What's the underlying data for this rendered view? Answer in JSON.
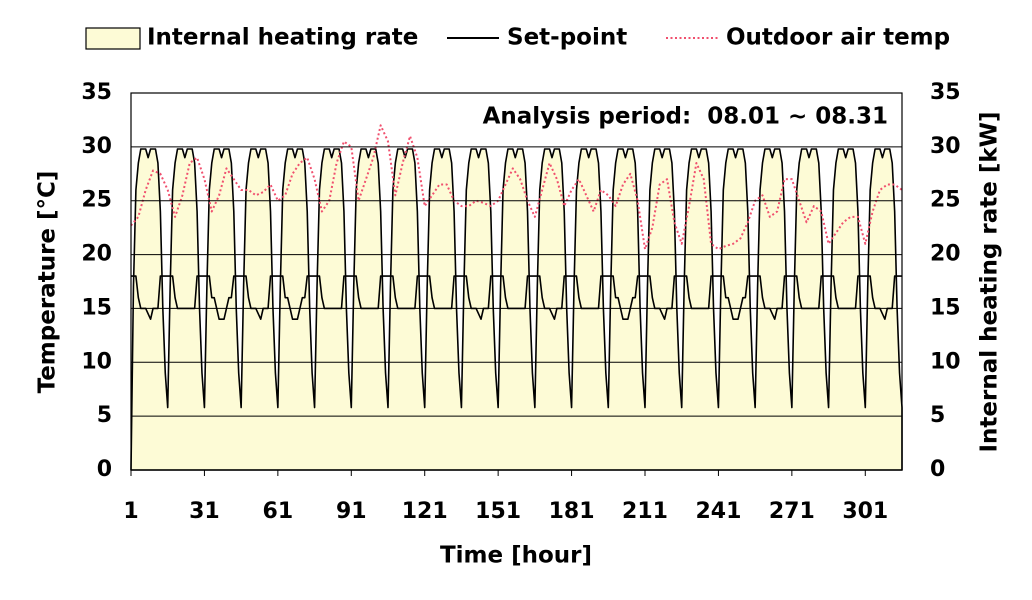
{
  "chart_data": {
    "type": "line",
    "annotation": "Analysis period:  08.01 ~ 08.31",
    "x_label": "Time [hour]",
    "y_label": "Temperature [°C]",
    "y2_label": "Internal heating rate [kW]",
    "xlim": [
      1,
      316
    ],
    "xticks": [
      1,
      31,
      61,
      91,
      121,
      151,
      181,
      211,
      241,
      271,
      301
    ],
    "ylim": [
      0,
      35
    ],
    "yticks": [
      0,
      5,
      10,
      15,
      20,
      25,
      30,
      35
    ],
    "y2lim": [
      0,
      35
    ],
    "y2ticks": [
      0,
      5,
      10,
      15,
      20,
      25,
      30,
      35
    ],
    "grid": true,
    "x": [
      1,
      2,
      3,
      4,
      5,
      6,
      7,
      8,
      9,
      10,
      11,
      12,
      13,
      14,
      15,
      16,
      17,
      18,
      19,
      20,
      21,
      22,
      23,
      24,
      25,
      26,
      27,
      28,
      29,
      30,
      31,
      32,
      33,
      34,
      35,
      36,
      37,
      38,
      39,
      40,
      41,
      42,
      43,
      44,
      45,
      46,
      47,
      48,
      49,
      50,
      51,
      52,
      53,
      54,
      55,
      56,
      57,
      58,
      59,
      60,
      61,
      62,
      63,
      64,
      65,
      66,
      67,
      68,
      69,
      70,
      71,
      72,
      73,
      74,
      75,
      76,
      77,
      78,
      79,
      80,
      81,
      82,
      83,
      84,
      85,
      86,
      87,
      88,
      89,
      90,
      91,
      92,
      93,
      94,
      95,
      96,
      97,
      98,
      99,
      100,
      101,
      102,
      103,
      104,
      105,
      106,
      107,
      108,
      109,
      110,
      111,
      112,
      113,
      114,
      115,
      116,
      117,
      118,
      119,
      120,
      121,
      122,
      123,
      124,
      125,
      126,
      127,
      128,
      129,
      130,
      131,
      132,
      133,
      134,
      135,
      136,
      137,
      138,
      139,
      140,
      141,
      142,
      143,
      144,
      145,
      146,
      147,
      148,
      149,
      150,
      151,
      152,
      153,
      154,
      155,
      156,
      157,
      158,
      159,
      160,
      161,
      162,
      163,
      164,
      165,
      166,
      167,
      168,
      169,
      170,
      171,
      172,
      173,
      174,
      175,
      176,
      177,
      178,
      179,
      180,
      181,
      182,
      183,
      184,
      185,
      186,
      187,
      188,
      189,
      190,
      191,
      192,
      193,
      194,
      195,
      196,
      197,
      198,
      199,
      200,
      201,
      202,
      203,
      204,
      205,
      206,
      207,
      208,
      209,
      210,
      211,
      212,
      213,
      214,
      215,
      216,
      217,
      218,
      219,
      220,
      221,
      222,
      223,
      224,
      225,
      226,
      227,
      228,
      229,
      230,
      231,
      232,
      233,
      234,
      235,
      236,
      237,
      238,
      239,
      240,
      241,
      242,
      243,
      244,
      245,
      246,
      247,
      248,
      249,
      250,
      251,
      252,
      253,
      254,
      255,
      256,
      257,
      258,
      259,
      260,
      261,
      262,
      263,
      264,
      265,
      266,
      267,
      268,
      269,
      270,
      271,
      272,
      273,
      274,
      275,
      276,
      277,
      278,
      279,
      280,
      281,
      282,
      283,
      284,
      285,
      286,
      287,
      288,
      289,
      290,
      291,
      292,
      293,
      294,
      295,
      296,
      297,
      298,
      299,
      300,
      301,
      302,
      303,
      304,
      305,
      306,
      307,
      308,
      309,
      310,
      311,
      312,
      313,
      314,
      315,
      316
    ],
    "series": [
      {
        "name": "Internal heating rate",
        "axis": "y2",
        "style": "area",
        "color": "#000000",
        "fill": "#fdfbd6",
        "values": [
          0,
          17,
          26,
          28.5,
          29.8,
          29.8,
          29.8,
          29,
          29.8,
          29.8,
          29.8,
          28.5,
          24,
          15,
          9,
          5.8,
          17,
          26,
          28.5,
          29.8,
          29.8,
          29.8,
          29,
          29.8,
          29.8,
          29.8,
          28.5,
          24,
          15,
          9,
          5.8,
          17,
          26,
          28.5,
          29.8,
          29.8,
          29.8,
          29,
          29.8,
          29.8,
          29.8,
          28.5,
          24,
          15,
          9,
          5.8,
          17,
          26,
          28.5,
          29.8,
          29.8,
          29.8,
          29,
          29.8,
          29.8,
          29.8,
          28.5,
          24,
          15,
          9,
          5.8,
          17,
          26,
          28.5,
          29.8,
          29.8,
          29.8,
          29,
          29.8,
          29.8,
          29.8,
          28.5,
          24,
          15,
          9,
          5.8,
          17,
          26,
          28.5,
          29.8,
          29.8,
          29.8,
          29,
          29.8,
          29.8,
          29.8,
          28.5,
          24,
          15,
          9,
          5.8,
          17,
          26,
          28.5,
          29.8,
          29.8,
          29.8,
          29,
          29.8,
          29.8,
          29.8,
          28.5,
          24,
          15,
          9,
          5.8,
          17,
          26,
          28.5,
          29.8,
          29.8,
          29.8,
          29,
          29.8,
          29.8,
          29.8,
          28.5,
          24,
          15,
          9,
          5.8,
          17,
          26,
          28.5,
          29.8,
          29.8,
          29.8,
          29,
          29.8,
          29.8,
          29.8,
          28.5,
          24,
          15,
          9,
          5.8,
          17,
          26,
          28.5,
          29.8,
          29.8,
          29.8,
          29,
          29.8,
          29.8,
          29.8,
          28.5,
          24,
          15,
          9,
          5.8,
          17,
          26,
          28.5,
          29.8,
          29.8,
          29.8,
          29,
          29.8,
          29.8,
          29.8,
          28.5,
          24,
          15,
          9,
          5.8,
          17,
          26,
          28.5,
          29.8,
          29.8,
          29.8,
          29,
          29.8,
          29.8,
          29.8,
          28.5,
          24,
          15,
          9,
          5.8,
          17,
          26,
          28.5,
          29.8,
          29.8,
          29.8,
          29,
          29.8,
          29.8,
          29.8,
          28.5,
          24,
          15,
          9,
          5.8,
          17,
          26,
          28.5,
          29.8,
          29.8,
          29.8,
          29,
          29.8,
          29.8,
          29.8,
          28.5,
          24,
          15,
          9,
          5.8,
          17,
          26,
          28.5,
          29.8,
          29.8,
          29.8,
          29,
          29.8,
          29.8,
          29.8,
          28.5,
          24,
          15,
          9,
          5.8,
          17,
          26,
          28.5,
          29.8,
          29.8,
          29.8,
          29,
          29.8,
          29.8,
          29.8,
          28.5,
          24,
          15,
          9,
          5.8,
          17,
          26,
          28.5,
          29.8,
          29.8,
          29.8,
          29,
          29.8,
          29.8,
          29.8,
          28.5,
          24,
          15,
          9,
          5.8,
          17,
          26,
          28.5,
          29.8,
          29.8,
          29.8,
          29,
          29.8,
          29.8,
          29.8,
          28.5,
          24,
          15,
          9,
          5.8,
          17,
          26,
          28.5,
          29.8,
          29.8,
          29.8,
          29,
          29.8,
          29.8,
          29.8,
          28.5,
          24,
          15,
          9,
          5.8,
          17,
          26,
          28.5,
          29.8,
          29.8,
          29.8,
          29,
          29.8,
          29.8,
          29.8,
          28.5,
          24,
          15,
          9,
          5.8,
          17,
          26,
          28.5,
          29.8,
          29.8,
          29.8,
          29,
          29.8,
          29.8,
          29.8,
          28.5,
          24,
          15,
          9,
          5.8
        ]
      },
      {
        "name": "Set-point",
        "style": "line",
        "color": "#000000",
        "values": [
          18,
          18,
          18,
          16,
          15,
          15,
          15,
          14.5,
          14,
          15,
          15,
          15,
          18,
          18,
          18,
          18,
          18,
          18,
          16,
          15,
          15,
          15,
          15,
          15,
          15,
          15,
          15,
          18,
          18,
          18,
          18,
          18,
          18,
          16,
          16,
          15,
          14,
          14,
          14,
          15,
          16,
          16,
          18,
          18,
          18,
          18,
          18,
          18,
          16,
          15,
          15,
          15,
          14.5,
          14,
          15,
          15,
          15,
          18,
          18,
          18,
          18,
          18,
          18,
          16,
          16,
          15,
          14,
          14,
          14,
          15,
          16,
          16,
          18,
          18,
          18,
          18,
          18,
          18,
          16,
          15,
          15,
          15,
          15,
          15,
          15,
          15,
          15,
          18,
          18,
          18,
          18,
          18,
          18,
          16,
          15,
          15,
          15,
          15,
          15,
          15,
          15,
          15,
          18,
          18,
          18,
          18,
          18,
          18,
          16,
          15,
          15,
          15,
          15,
          15,
          15,
          15,
          15,
          18,
          18,
          18,
          18,
          18,
          18,
          16,
          15,
          15,
          15,
          15,
          15,
          15,
          15,
          15,
          18,
          18,
          18,
          18,
          18,
          18,
          16,
          15,
          15,
          15,
          14.5,
          14,
          15,
          15,
          15,
          18,
          18,
          18,
          18,
          18,
          18,
          16,
          15,
          15,
          15,
          15,
          15,
          15,
          15,
          15,
          18,
          18,
          18,
          18,
          18,
          18,
          16,
          15,
          15,
          15,
          14.5,
          14,
          15,
          15,
          15,
          18,
          18,
          18,
          18,
          18,
          18,
          16,
          15,
          15,
          15,
          15,
          15,
          15,
          15,
          15,
          18,
          18,
          18,
          18,
          18,
          18,
          16,
          16,
          15,
          14,
          14,
          14,
          15,
          16,
          16,
          18,
          18,
          18,
          18,
          18,
          18,
          16,
          15,
          15,
          15,
          14.5,
          14,
          15,
          15,
          15,
          18,
          18,
          18,
          18,
          18,
          18,
          16,
          15,
          15,
          15,
          15,
          15,
          15,
          15,
          15,
          18,
          18,
          18,
          18,
          18,
          18,
          16,
          16,
          15,
          14,
          14,
          14,
          15,
          16,
          16,
          18,
          18,
          18,
          18,
          18,
          18,
          16,
          15,
          15,
          15,
          14.5,
          14,
          15,
          15,
          15,
          18,
          18,
          18,
          18,
          18,
          18,
          16,
          15,
          15,
          15,
          15,
          15,
          15,
          15,
          15,
          18,
          18,
          18,
          18,
          18,
          18,
          16,
          15,
          15,
          15,
          15,
          15,
          15,
          15,
          15,
          18,
          18,
          18,
          18,
          18,
          18,
          16,
          15,
          15,
          15,
          14.5,
          14,
          15,
          15,
          15,
          18,
          18,
          18,
          18
        ]
      },
      {
        "name": "Outdoor air temp",
        "style": "dotted",
        "color": "#f0506e",
        "x": [
          1,
          4,
          7,
          10,
          13,
          16,
          19,
          22,
          25,
          28,
          31,
          34,
          37,
          40,
          43,
          46,
          49,
          52,
          55,
          58,
          61,
          64,
          67,
          70,
          73,
          76,
          79,
          82,
          85,
          88,
          91,
          94,
          97,
          100,
          103,
          106,
          109,
          112,
          115,
          118,
          121,
          124,
          127,
          130,
          133,
          136,
          139,
          142,
          145,
          148,
          151,
          154,
          157,
          160,
          163,
          166,
          169,
          172,
          175,
          178,
          181,
          184,
          187,
          190,
          193,
          196,
          199,
          202,
          205,
          208,
          211,
          214,
          217,
          220,
          223,
          226,
          229,
          232,
          235,
          238,
          241,
          244,
          247,
          250,
          253,
          256,
          259,
          262,
          265,
          268,
          271,
          274,
          277,
          280,
          283,
          286,
          289,
          292,
          295,
          298,
          301,
          304,
          307,
          310,
          313,
          316
        ],
        "values": [
          22.7,
          23.5,
          26,
          27.8,
          27.5,
          26,
          23.5,
          25.5,
          28.5,
          29,
          27,
          24,
          25.5,
          28,
          27,
          26,
          26,
          25.5,
          25.8,
          26.5,
          25,
          25.5,
          27.5,
          28.5,
          29,
          27,
          24,
          25,
          28.5,
          30.5,
          30,
          25,
          27,
          29,
          32,
          30.5,
          25.5,
          28.5,
          31,
          29,
          24.5,
          25.5,
          26.5,
          26.5,
          25,
          24.5,
          24.5,
          25,
          24.8,
          24.5,
          25,
          26.5,
          28,
          27,
          25,
          23.5,
          26,
          28.5,
          27,
          24.5,
          26,
          27,
          25.5,
          24,
          26,
          25.5,
          24.5,
          26.5,
          27.5,
          25,
          20.5,
          22.5,
          26.5,
          27,
          23,
          21,
          24.5,
          28.5,
          27,
          21,
          20.5,
          20.8,
          21,
          21.5,
          23,
          25,
          25.5,
          23.5,
          24,
          27,
          27,
          25,
          23,
          24.5,
          24,
          21,
          22,
          23,
          23.5,
          23.5,
          21,
          24,
          26,
          26.5,
          26.5,
          26
        ]
      }
    ]
  }
}
